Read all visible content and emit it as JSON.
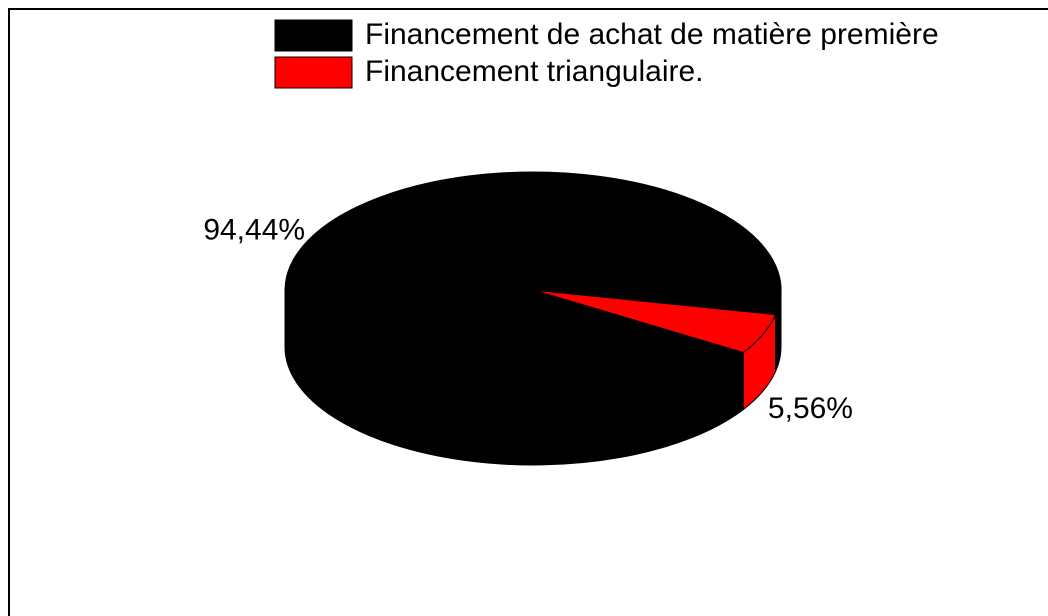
{
  "chart_data": {
    "type": "pie",
    "categories": [
      "Financement de achat de matière première",
      "Financement triangulaire."
    ],
    "values": [
      94.44,
      5.56
    ],
    "value_labels": [
      "94,44%",
      "5,56%"
    ],
    "colors": [
      "#000000",
      "#ff0000"
    ],
    "legend": "top-right"
  }
}
